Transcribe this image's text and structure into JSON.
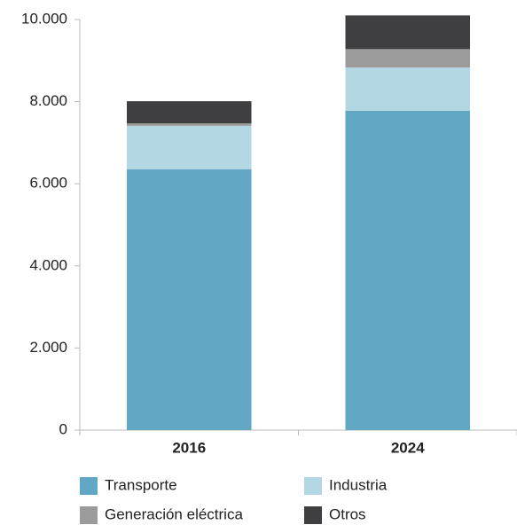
{
  "chart_data": {
    "type": "stacked_bar",
    "categories": [
      "2016",
      "2024"
    ],
    "series": [
      {
        "name": "Transporte",
        "color": "#62a8c4",
        "values": [
          6350,
          7780
        ]
      },
      {
        "name": "Industria",
        "color": "#b3d8e3",
        "values": [
          1060,
          1050
        ]
      },
      {
        "name": "Generación eléctrica",
        "color": "#9b9b9b",
        "values": [
          60,
          450
        ]
      },
      {
        "name": "Otros",
        "color": "#3f3f41",
        "values": [
          540,
          820
        ]
      }
    ],
    "ylim": [
      0,
      10000
    ],
    "yticks": [
      0,
      {
        "value": 2000,
        "label": "2.000"
      },
      {
        "value": 4000,
        "label": "4.000"
      },
      {
        "value": 6000,
        "label": "6.000"
      },
      {
        "value": 8000,
        "label": "8.000"
      },
      {
        "value": 10000,
        "label": "10.000"
      }
    ],
    "legend": "bottom"
  }
}
